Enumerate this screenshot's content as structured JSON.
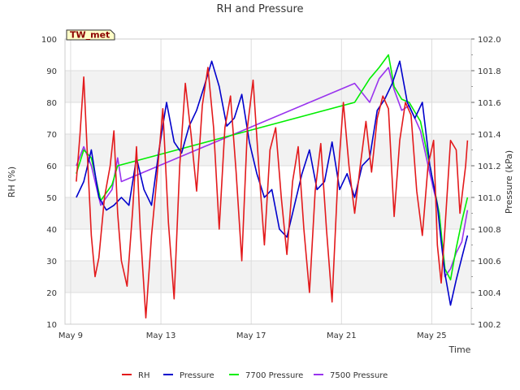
{
  "chart_data": {
    "type": "line",
    "title": "RH and Pressure",
    "station_label": "TW_met",
    "xlabel": "Time",
    "ylabel": "RH (%)",
    "y2label": "Pressure (kPa)",
    "x_range": [
      "2024-05-08T18:00",
      "2024-05-26T18:00"
    ],
    "x_ticks": [
      {
        "label": "May 9",
        "date": "2024-05-09"
      },
      {
        "label": "May 13",
        "date": "2024-05-13"
      },
      {
        "label": "May 17",
        "date": "2024-05-17"
      },
      {
        "label": "May 21",
        "date": "2024-05-21"
      },
      {
        "label": "May 25",
        "date": "2024-05-25"
      }
    ],
    "ylim": [
      10,
      100
    ],
    "y_ticks": [
      "10",
      "20",
      "30",
      "40",
      "50",
      "60",
      "70",
      "80",
      "90",
      "100"
    ],
    "y2lim": [
      100.2,
      102.0
    ],
    "y2_ticks": [
      "100.2",
      "100.4",
      "100.6",
      "100.8",
      "101.0",
      "101.2",
      "101.4",
      "101.6",
      "101.8",
      "102.0"
    ],
    "grid": true,
    "legend_position": "bottom",
    "series": [
      {
        "name": "RH",
        "axis": "left",
        "color": "#e31a1c",
        "points": [
          [
            "2024-05-09T06:00",
            55
          ],
          [
            "2024-05-09T10:00",
            70
          ],
          [
            "2024-05-09T14:00",
            88
          ],
          [
            "2024-05-09T18:00",
            62
          ],
          [
            "2024-05-09T22:00",
            38
          ],
          [
            "2024-05-10T02:00",
            25
          ],
          [
            "2024-05-10T06:00",
            31
          ],
          [
            "2024-05-10T12:00",
            50
          ],
          [
            "2024-05-10T18:00",
            60
          ],
          [
            "2024-05-10T22:00",
            71
          ],
          [
            "2024-05-11T02:00",
            45
          ],
          [
            "2024-05-11T06:00",
            30
          ],
          [
            "2024-05-11T12:00",
            22
          ],
          [
            "2024-05-11T18:00",
            46
          ],
          [
            "2024-05-11T22:00",
            66
          ],
          [
            "2024-05-12T02:00",
            40
          ],
          [
            "2024-05-12T08:00",
            12
          ],
          [
            "2024-05-12T14:00",
            38
          ],
          [
            "2024-05-12T20:00",
            57
          ],
          [
            "2024-05-13T02:00",
            78
          ],
          [
            "2024-05-13T08:00",
            42
          ],
          [
            "2024-05-13T14:00",
            18
          ],
          [
            "2024-05-13T20:00",
            60
          ],
          [
            "2024-05-14T02:00",
            86
          ],
          [
            "2024-05-14T08:00",
            70
          ],
          [
            "2024-05-14T14:00",
            52
          ],
          [
            "2024-05-14T20:00",
            79
          ],
          [
            "2024-05-15T02:00",
            91
          ],
          [
            "2024-05-15T08:00",
            72
          ],
          [
            "2024-05-15T14:00",
            40
          ],
          [
            "2024-05-15T20:00",
            72
          ],
          [
            "2024-05-16T02:00",
            82
          ],
          [
            "2024-05-16T08:00",
            58
          ],
          [
            "2024-05-16T14:00",
            30
          ],
          [
            "2024-05-16T20:00",
            72
          ],
          [
            "2024-05-17T02:00",
            87
          ],
          [
            "2024-05-17T08:00",
            60
          ],
          [
            "2024-05-17T14:00",
            35
          ],
          [
            "2024-05-17T20:00",
            65
          ],
          [
            "2024-05-18T02:00",
            72
          ],
          [
            "2024-05-18T08:00",
            50
          ],
          [
            "2024-05-18T14:00",
            32
          ],
          [
            "2024-05-18T20:00",
            55
          ],
          [
            "2024-05-19T02:00",
            66
          ],
          [
            "2024-05-19T08:00",
            40
          ],
          [
            "2024-05-19T14:00",
            20
          ],
          [
            "2024-05-19T20:00",
            52
          ],
          [
            "2024-05-20T02:00",
            67
          ],
          [
            "2024-05-20T08:00",
            40
          ],
          [
            "2024-05-20T14:00",
            17
          ],
          [
            "2024-05-20T20:00",
            55
          ],
          [
            "2024-05-21T02:00",
            80
          ],
          [
            "2024-05-21T08:00",
            60
          ],
          [
            "2024-05-21T14:00",
            45
          ],
          [
            "2024-05-21T20:00",
            60
          ],
          [
            "2024-05-22T02:00",
            74
          ],
          [
            "2024-05-22T08:00",
            58
          ],
          [
            "2024-05-22T14:00",
            75
          ],
          [
            "2024-05-22T20:00",
            82
          ],
          [
            "2024-05-23T02:00",
            78
          ],
          [
            "2024-05-23T08:00",
            44
          ],
          [
            "2024-05-23T14:00",
            68
          ],
          [
            "2024-05-23T20:00",
            80
          ],
          [
            "2024-05-24T02:00",
            76
          ],
          [
            "2024-05-24T08:00",
            52
          ],
          [
            "2024-05-24T14:00",
            38
          ],
          [
            "2024-05-24T20:00",
            60
          ],
          [
            "2024-05-25T02:00",
            68
          ],
          [
            "2024-05-25T06:00",
            35
          ],
          [
            "2024-05-25T10:00",
            23
          ],
          [
            "2024-05-25T14:00",
            40
          ],
          [
            "2024-05-25T20:00",
            68
          ],
          [
            "2024-05-26T02:00",
            65
          ],
          [
            "2024-05-26T06:00",
            45
          ],
          [
            "2024-05-26T12:00",
            60
          ],
          [
            "2024-05-26T14:00",
            68
          ]
        ]
      },
      {
        "name": "Pressure",
        "axis": "right",
        "color": "#0000cc",
        "points": [
          [
            "2024-05-09T06:00",
            101.0
          ],
          [
            "2024-05-09T14:00",
            101.1
          ],
          [
            "2024-05-09T22:00",
            101.3
          ],
          [
            "2024-05-10T06:00",
            101.0
          ],
          [
            "2024-05-10T14:00",
            100.92
          ],
          [
            "2024-05-10T22:00",
            100.95
          ],
          [
            "2024-05-11T06:00",
            101.0
          ],
          [
            "2024-05-11T14:00",
            100.95
          ],
          [
            "2024-05-11T22:00",
            101.25
          ],
          [
            "2024-05-12T06:00",
            101.05
          ],
          [
            "2024-05-12T14:00",
            100.95
          ],
          [
            "2024-05-12T22:00",
            101.3
          ],
          [
            "2024-05-13T06:00",
            101.6
          ],
          [
            "2024-05-13T14:00",
            101.35
          ],
          [
            "2024-05-13T22:00",
            101.28
          ],
          [
            "2024-05-14T06:00",
            101.45
          ],
          [
            "2024-05-14T14:00",
            101.55
          ],
          [
            "2024-05-14T22:00",
            101.7
          ],
          [
            "2024-05-15T06:00",
            101.86
          ],
          [
            "2024-05-15T14:00",
            101.7
          ],
          [
            "2024-05-15T22:00",
            101.45
          ],
          [
            "2024-05-16T06:00",
            101.5
          ],
          [
            "2024-05-16T14:00",
            101.65
          ],
          [
            "2024-05-16T22:00",
            101.35
          ],
          [
            "2024-05-17T06:00",
            101.15
          ],
          [
            "2024-05-17T14:00",
            101.0
          ],
          [
            "2024-05-17T22:00",
            101.05
          ],
          [
            "2024-05-18T06:00",
            100.8
          ],
          [
            "2024-05-18T14:00",
            100.75
          ],
          [
            "2024-05-18T22:00",
            100.95
          ],
          [
            "2024-05-19T06:00",
            101.15
          ],
          [
            "2024-05-19T14:00",
            101.3
          ],
          [
            "2024-05-19T22:00",
            101.05
          ],
          [
            "2024-05-20T06:00",
            101.1
          ],
          [
            "2024-05-20T14:00",
            101.35
          ],
          [
            "2024-05-20T22:00",
            101.05
          ],
          [
            "2024-05-21T06:00",
            101.15
          ],
          [
            "2024-05-21T14:00",
            101.0
          ],
          [
            "2024-05-21T22:00",
            101.2
          ],
          [
            "2024-05-22T06:00",
            101.25
          ],
          [
            "2024-05-22T14:00",
            101.55
          ],
          [
            "2024-05-22T22:00",
            101.62
          ],
          [
            "2024-05-23T06:00",
            101.72
          ],
          [
            "2024-05-23T14:00",
            101.86
          ],
          [
            "2024-05-23T22:00",
            101.6
          ],
          [
            "2024-05-24T06:00",
            101.5
          ],
          [
            "2024-05-24T14:00",
            101.6
          ],
          [
            "2024-05-24T22:00",
            101.2
          ],
          [
            "2024-05-25T06:00",
            100.95
          ],
          [
            "2024-05-25T10:00",
            100.72
          ],
          [
            "2024-05-25T14:00",
            100.52
          ],
          [
            "2024-05-25T20:00",
            100.32
          ],
          [
            "2024-05-26T02:00",
            100.48
          ],
          [
            "2024-05-26T08:00",
            100.62
          ],
          [
            "2024-05-26T14:00",
            100.76
          ]
        ]
      },
      {
        "name": "7700 Pressure",
        "axis": "right",
        "color": "#00ee00",
        "points": [
          [
            "2024-05-09T06:00",
            101.15
          ],
          [
            "2024-05-09T14:00",
            101.3
          ],
          [
            "2024-05-09T22:00",
            101.25
          ],
          [
            "2024-05-10T08:00",
            100.98
          ],
          [
            "2024-05-10T20:00",
            101.08
          ],
          [
            "2024-05-11T02:00",
            101.2
          ],
          [
            "2024-05-21T14:00",
            101.6
          ],
          [
            "2024-05-22T06:00",
            101.75
          ],
          [
            "2024-05-22T16:00",
            101.82
          ],
          [
            "2024-05-23T02:00",
            101.9
          ],
          [
            "2024-05-23T08:00",
            101.7
          ],
          [
            "2024-05-23T16:00",
            101.62
          ],
          [
            "2024-05-24T00:00",
            101.6
          ],
          [
            "2024-05-24T12:00",
            101.48
          ],
          [
            "2024-05-24T22:00",
            101.2
          ],
          [
            "2024-05-25T08:00",
            100.9
          ],
          [
            "2024-05-25T14:00",
            100.55
          ],
          [
            "2024-05-25T20:00",
            100.48
          ],
          [
            "2024-05-26T02:00",
            100.68
          ],
          [
            "2024-05-26T08:00",
            100.85
          ],
          [
            "2024-05-26T14:00",
            101.0
          ]
        ]
      },
      {
        "name": "7500 Pressure",
        "axis": "right",
        "color": "#9933ee",
        "points": [
          [
            "2024-05-09T06:00",
            101.2
          ],
          [
            "2024-05-09T14:00",
            101.32
          ],
          [
            "2024-05-09T22:00",
            101.2
          ],
          [
            "2024-05-10T08:00",
            100.95
          ],
          [
            "2024-05-10T20:00",
            101.05
          ],
          [
            "2024-05-11T02:00",
            101.25
          ],
          [
            "2024-05-11T06:00",
            101.1
          ],
          [
            "2024-05-21T14:00",
            101.72
          ],
          [
            "2024-05-22T06:00",
            101.6
          ],
          [
            "2024-05-22T16:00",
            101.75
          ],
          [
            "2024-05-23T02:00",
            101.82
          ],
          [
            "2024-05-23T08:00",
            101.68
          ],
          [
            "2024-05-23T16:00",
            101.55
          ],
          [
            "2024-05-24T00:00",
            101.58
          ],
          [
            "2024-05-24T12:00",
            101.42
          ],
          [
            "2024-05-24T22:00",
            101.15
          ],
          [
            "2024-05-25T08:00",
            100.9
          ],
          [
            "2024-05-25T14:00",
            100.5
          ],
          [
            "2024-05-25T20:00",
            100.55
          ],
          [
            "2024-05-26T02:00",
            100.65
          ],
          [
            "2024-05-26T08:00",
            100.72
          ],
          [
            "2024-05-26T14:00",
            100.92
          ]
        ]
      }
    ]
  }
}
